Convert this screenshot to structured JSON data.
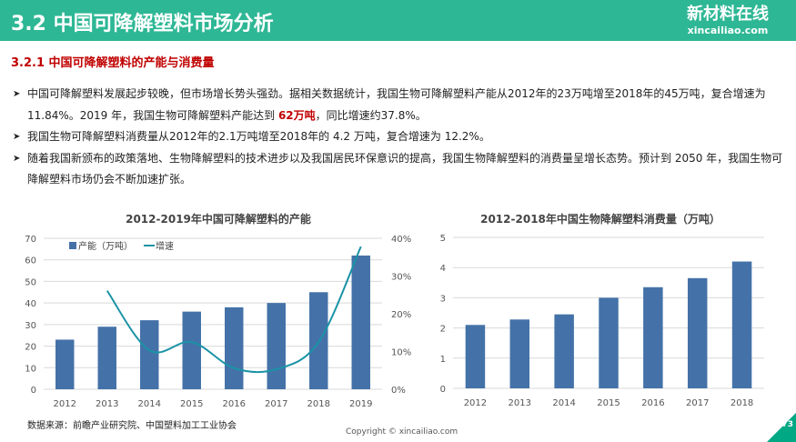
{
  "header": {
    "title": "3.2 中国可降解塑料市场分析",
    "logo_cn": "新材料在线",
    "logo_en": "xincailiao.com"
  },
  "section": {
    "title": "3.2.1 中国可降解塑料的产能与消费量"
  },
  "bullets": [
    {
      "pre": "中国可降解塑料发展起步较晚，但市场增长势头强劲。据相关数据统计，我国生物可降解塑料产能从2012年的23万吨增至2018年的45万吨，复合增速为 11.84%。2019 年，我国生物可降解塑料产能达到 ",
      "hl": "62万吨",
      "post": "，同比增速约37.8%。"
    },
    {
      "pre": "我国生物可降解塑料消费量从2012年的2.1万吨增至2018年的 4.2 万吨，复合增速为 12.2%。"
    },
    {
      "pre": "随着我国新颁布的政策落地、生物降解塑料的技术进步以及我国居民环保意识的提高，我国生物降解塑料的消费量呈增长态势。预计到 2050 年，我国生物可降解塑料市场仍会不断加速扩张。"
    }
  ],
  "chart_data": [
    {
      "type": "bar+line",
      "title": "2012-2019年中国可降解塑料的产能",
      "categories": [
        "2012",
        "2013",
        "2014",
        "2015",
        "2016",
        "2017",
        "2018",
        "2019"
      ],
      "series": [
        {
          "name": "产能（万吨）",
          "type": "bar",
          "axis": "left",
          "color": "#4472a8",
          "values": [
            23,
            29,
            32,
            36,
            38,
            40,
            45,
            62
          ]
        },
        {
          "name": "增速",
          "type": "line",
          "axis": "right",
          "color": "#1a93a6",
          "values": [
            null,
            26.1,
            10.3,
            12.5,
            5.6,
            5.3,
            12.5,
            37.8
          ]
        }
      ],
      "ylim": [
        0,
        70
      ],
      "yticks": [
        "0",
        "10",
        "20",
        "30",
        "40",
        "50",
        "60",
        "70"
      ],
      "y2lim": [
        0,
        40
      ],
      "y2ticks": [
        "0%",
        "10%",
        "20%",
        "30%",
        "40%"
      ],
      "grid": true,
      "legend": "top-left"
    },
    {
      "type": "bar",
      "title": "2012-2018年中国生物降解塑料消费量（万吨）",
      "categories": [
        "2012",
        "2013",
        "2014",
        "2015",
        "2016",
        "2017",
        "2018"
      ],
      "values": [
        2.1,
        2.28,
        2.45,
        3.0,
        3.35,
        3.65,
        4.2
      ],
      "color": "#4472a8",
      "ylim": [
        0,
        5
      ],
      "yticks": [
        "0",
        "1",
        "2",
        "3",
        "4",
        "5"
      ],
      "grid": true
    }
  ],
  "footer": {
    "source": "数据来源：前瞻产业研究院、中国塑料加工工业协会",
    "copyright": "Copyright © xincailiao.com",
    "page": "73"
  }
}
